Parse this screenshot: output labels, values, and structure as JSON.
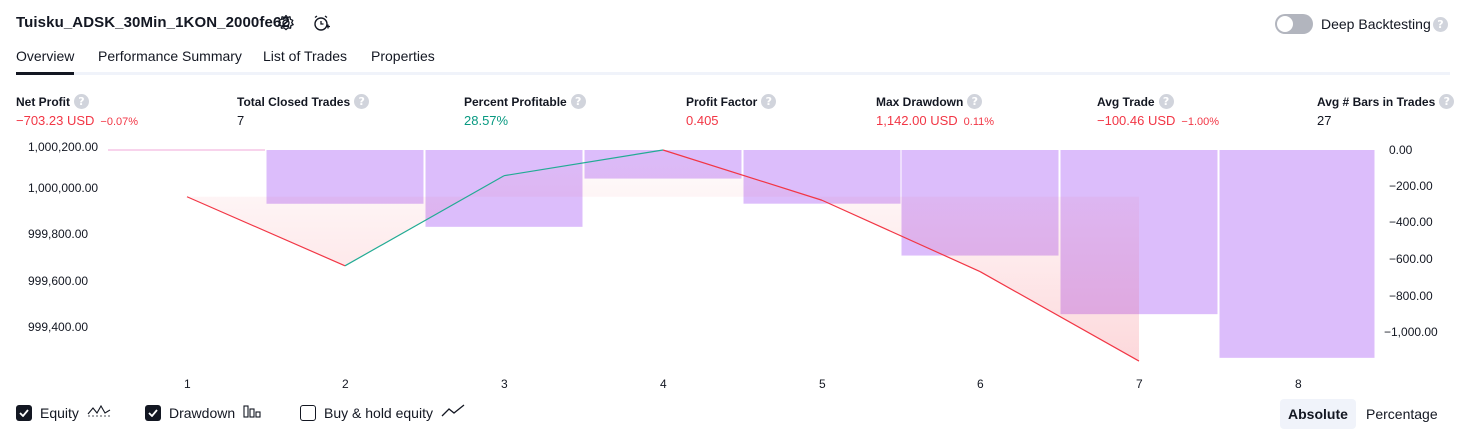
{
  "header": {
    "strategy_title": "Tuisku_ADSK_30Min_1KON_2000fe62",
    "settings_icon": "gear-icon",
    "alert_icon": "alarm-clock-plus-icon",
    "deep_backtesting_label": "Deep Backtesting",
    "deep_backtesting_enabled": false
  },
  "tabs": [
    {
      "label": "Overview",
      "active": true
    },
    {
      "label": "Performance Summary",
      "active": false
    },
    {
      "label": "List of Trades",
      "active": false
    },
    {
      "label": "Properties",
      "active": false
    }
  ],
  "metrics": [
    {
      "label": "Net Profit",
      "value": "−703.23 USD",
      "pct": "−0.07%",
      "tone": "red"
    },
    {
      "label": "Total Closed Trades",
      "value": "7",
      "pct": "",
      "tone": "dark"
    },
    {
      "label": "Percent Profitable",
      "value": "28.57%",
      "pct": "",
      "tone": "green"
    },
    {
      "label": "Profit Factor",
      "value": "0.405",
      "pct": "",
      "tone": "red"
    },
    {
      "label": "Max Drawdown",
      "value": "1,142.00 USD",
      "pct": "0.11%",
      "tone": "red"
    },
    {
      "label": "Avg Trade",
      "value": "−100.46 USD",
      "pct": "−1.00%",
      "tone": "red"
    },
    {
      "label": "Avg # Bars in Trades",
      "value": "27",
      "pct": "",
      "tone": "dark"
    }
  ],
  "chart_data": {
    "type": "line",
    "x": [
      1,
      2,
      3,
      4,
      5,
      6,
      7,
      8
    ],
    "left_axis_ticks": [
      "1,000,200.00",
      "1,000,000.00",
      "999,800.00",
      "999,600.00",
      "999,400.00"
    ],
    "right_axis_ticks": [
      "0.00",
      "−200.00",
      "−400.00",
      "−600.00",
      "−800.00",
      "−1,000.00"
    ],
    "ylim_equity": [
      999280,
      1000220
    ],
    "ylim_drawdown": [
      -1200,
      0
    ],
    "series": [
      {
        "name": "Equity",
        "axis": "left",
        "values": [
          1000000,
          999704.6,
          1000090,
          1000200,
          999985,
          999680,
          999297,
          null
        ]
      },
      {
        "name": "Drawdown",
        "axis": "right",
        "type": "bar",
        "values": [
          0,
          -295.4,
          -422.2,
          -157,
          -295,
          -580,
          -902,
          -1142
        ]
      }
    ],
    "colors": {
      "up": "#22ab94",
      "down": "#f23645",
      "drawdown_bar": "#ce93d8"
    }
  },
  "legend": {
    "items": [
      {
        "label": "Equity",
        "checked": true,
        "icon": "equity-line-icon"
      },
      {
        "label": "Drawdown",
        "checked": true,
        "icon": "drawdown-bars-icon"
      },
      {
        "label": "Buy & hold equity",
        "checked": false,
        "icon": "buy-hold-line-icon"
      }
    ]
  },
  "view_mode": {
    "absolute_label": "Absolute",
    "percentage_label": "Percentage",
    "selected": "Absolute"
  }
}
